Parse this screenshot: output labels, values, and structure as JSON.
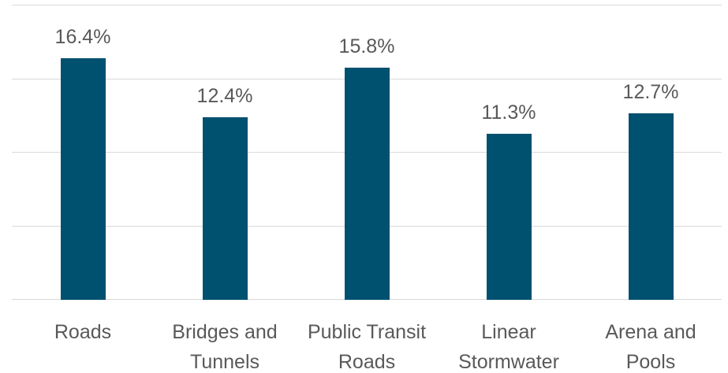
{
  "chart_data": {
    "type": "bar",
    "categories": [
      "Roads",
      "Bridges and Tunnels",
      "Public Transit Roads",
      "Linear Stormwater",
      "Arena and Pools"
    ],
    "values": [
      16.4,
      12.4,
      15.8,
      11.3,
      12.7
    ],
    "value_labels": [
      "16.4%",
      "12.4%",
      "15.8%",
      "11.3%",
      "12.7%"
    ],
    "color": "#00506f",
    "ylim": [
      0,
      20
    ],
    "yticks": [
      0,
      5,
      10,
      15,
      20
    ],
    "grid": true
  }
}
